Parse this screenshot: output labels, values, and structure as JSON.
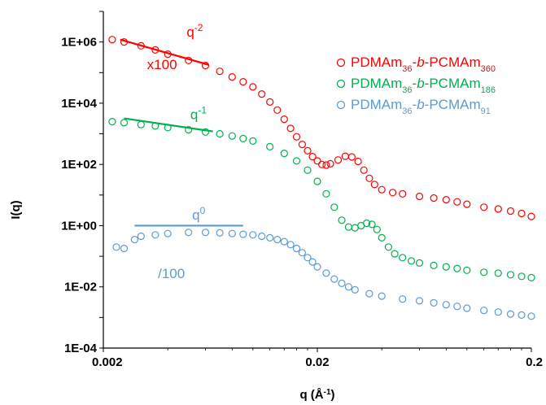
{
  "chart_data": {
    "type": "scatter",
    "title": "",
    "xlabel": "q (Å⁻¹)",
    "xlabel_base": "q (Å",
    "xlabel_exp": "-1",
    "xlabel_end": ")",
    "ylabel": "I(q)",
    "x_scale": "log",
    "y_scale": "log",
    "xlim": [
      0.002,
      0.2
    ],
    "ylim": [
      0.0001,
      10000000
    ],
    "x_ticks": [
      {
        "value": 0.002,
        "label": "0.002"
      },
      {
        "value": 0.02,
        "label": "0.02"
      },
      {
        "value": 0.2,
        "label": "0.2"
      }
    ],
    "y_ticks": [
      {
        "value": 1000000,
        "label": "1E+06"
      },
      {
        "value": 10000,
        "label": "1E+04"
      },
      {
        "value": 100,
        "label": "1E+02"
      },
      {
        "value": 1,
        "label": "1E+00"
      },
      {
        "value": 0.01,
        "label": "1E-02"
      },
      {
        "value": 0.0001,
        "label": "1E-04"
      }
    ],
    "grid": false,
    "legend_position": "right",
    "series": [
      {
        "name": "PDMAm36-b-PCMAm360",
        "name_parts": {
          "a": "PDMAm",
          "a_sub": "36",
          "sep1": "-",
          "b": "b",
          "sep2": "-PCMAm",
          "c_sub": "360"
        },
        "color": "#ff0000",
        "marker": "open-circle",
        "points": [
          [
            0.0022,
            1200000
          ],
          [
            0.0025,
            1000000
          ],
          [
            0.003,
            750000
          ],
          [
            0.0035,
            550000
          ],
          [
            0.004,
            400000
          ],
          [
            0.005,
            250000
          ],
          [
            0.006,
            170000
          ],
          [
            0.007,
            110000
          ],
          [
            0.008,
            72000
          ],
          [
            0.009,
            50000
          ],
          [
            0.01,
            34000
          ],
          [
            0.011,
            20000
          ],
          [
            0.012,
            11000
          ],
          [
            0.013,
            6000
          ],
          [
            0.014,
            3000
          ],
          [
            0.015,
            1500
          ],
          [
            0.016,
            800
          ],
          [
            0.017,
            450
          ],
          [
            0.018,
            280
          ],
          [
            0.019,
            180
          ],
          [
            0.02,
            130
          ],
          [
            0.021,
            100
          ],
          [
            0.022,
            95
          ],
          [
            0.023,
            105
          ],
          [
            0.025,
            140
          ],
          [
            0.027,
            185
          ],
          [
            0.029,
            175
          ],
          [
            0.031,
            125
          ],
          [
            0.033,
            65
          ],
          [
            0.035,
            35
          ],
          [
            0.037,
            22
          ],
          [
            0.04,
            15
          ],
          [
            0.045,
            12
          ],
          [
            0.05,
            11
          ],
          [
            0.06,
            9
          ],
          [
            0.07,
            8
          ],
          [
            0.08,
            7
          ],
          [
            0.09,
            6
          ],
          [
            0.1,
            5
          ],
          [
            0.12,
            4
          ],
          [
            0.14,
            3.5
          ],
          [
            0.16,
            3
          ],
          [
            0.18,
            2.5
          ],
          [
            0.2,
            2
          ]
        ]
      },
      {
        "name": "PDMAm36-b-PCMAm186",
        "name_parts": {
          "a": "PDMAm",
          "a_sub": "36",
          "sep1": "-",
          "b": "b",
          "sep2": "-PCMAm",
          "c_sub": "186"
        },
        "color": "#00b050",
        "marker": "open-circle",
        "points": [
          [
            0.0022,
            2500
          ],
          [
            0.0025,
            2300
          ],
          [
            0.003,
            2000
          ],
          [
            0.0035,
            1800
          ],
          [
            0.004,
            1600
          ],
          [
            0.005,
            1350
          ],
          [
            0.006,
            1150
          ],
          [
            0.007,
            1000
          ],
          [
            0.008,
            850
          ],
          [
            0.009,
            700
          ],
          [
            0.01,
            580
          ],
          [
            0.012,
            380
          ],
          [
            0.014,
            230
          ],
          [
            0.016,
            130
          ],
          [
            0.018,
            65
          ],
          [
            0.02,
            28
          ],
          [
            0.022,
            11
          ],
          [
            0.024,
            4
          ],
          [
            0.026,
            1.5
          ],
          [
            0.028,
            0.9
          ],
          [
            0.03,
            0.85
          ],
          [
            0.032,
            1.0
          ],
          [
            0.034,
            1.2
          ],
          [
            0.036,
            1.1
          ],
          [
            0.038,
            0.75
          ],
          [
            0.04,
            0.4
          ],
          [
            0.043,
            0.2
          ],
          [
            0.046,
            0.12
          ],
          [
            0.05,
            0.09
          ],
          [
            0.055,
            0.07
          ],
          [
            0.06,
            0.06
          ],
          [
            0.07,
            0.05
          ],
          [
            0.08,
            0.045
          ],
          [
            0.09,
            0.04
          ],
          [
            0.1,
            0.035
          ],
          [
            0.12,
            0.03
          ],
          [
            0.14,
            0.028
          ],
          [
            0.16,
            0.025
          ],
          [
            0.18,
            0.022
          ],
          [
            0.2,
            0.02
          ]
        ]
      },
      {
        "name": "PDMAm36-b-PCMAm91",
        "name_parts": {
          "a": "PDMAm",
          "a_sub": "36",
          "sep1": "-",
          "b": "b",
          "sep2": "-PCMAm",
          "c_sub": "91"
        },
        "color": "#5b9bd5",
        "marker": "open-circle",
        "points": [
          [
            0.0023,
            0.2
          ],
          [
            0.0025,
            0.18
          ],
          [
            0.0028,
            0.35
          ],
          [
            0.003,
            0.45
          ],
          [
            0.0035,
            0.5
          ],
          [
            0.004,
            0.55
          ],
          [
            0.005,
            0.6
          ],
          [
            0.006,
            0.6
          ],
          [
            0.007,
            0.58
          ],
          [
            0.008,
            0.55
          ],
          [
            0.009,
            0.52
          ],
          [
            0.01,
            0.5
          ],
          [
            0.011,
            0.45
          ],
          [
            0.012,
            0.4
          ],
          [
            0.013,
            0.35
          ],
          [
            0.014,
            0.3
          ],
          [
            0.015,
            0.24
          ],
          [
            0.016,
            0.18
          ],
          [
            0.017,
            0.13
          ],
          [
            0.018,
            0.09
          ],
          [
            0.019,
            0.065
          ],
          [
            0.02,
            0.045
          ],
          [
            0.022,
            0.028
          ],
          [
            0.024,
            0.018
          ],
          [
            0.026,
            0.013
          ],
          [
            0.028,
            0.01
          ],
          [
            0.03,
            0.008
          ],
          [
            0.035,
            0.006
          ],
          [
            0.04,
            0.005
          ],
          [
            0.05,
            0.004
          ],
          [
            0.06,
            0.0035
          ],
          [
            0.07,
            0.003
          ],
          [
            0.08,
            0.0026
          ],
          [
            0.09,
            0.0023
          ],
          [
            0.1,
            0.002
          ],
          [
            0.12,
            0.0017
          ],
          [
            0.14,
            0.0015
          ],
          [
            0.16,
            0.0013
          ],
          [
            0.18,
            0.0012
          ],
          [
            0.2,
            0.0011
          ]
        ]
      }
    ],
    "slope_lines": [
      {
        "label_base": "q",
        "label_exp": "-2",
        "color": "#ff0000",
        "x0": 0.0024,
        "y0": 1200000,
        "x1": 0.0062,
        "y1": 180000,
        "label_x": 0.0049,
        "label_y": 1500000
      },
      {
        "label_base": "q",
        "label_exp": "-1",
        "color": "#00b050",
        "x0": 0.0025,
        "y0": 3200,
        "x1": 0.0065,
        "y1": 1200,
        "label_x": 0.0051,
        "label_y": 3000
      },
      {
        "label_base": "q",
        "label_exp": "0",
        "color": "#5b9bd5",
        "x0": 0.0028,
        "y0": 1.0,
        "x1": 0.009,
        "y1": 1.0,
        "label_x": 0.0052,
        "label_y": 1.6
      }
    ],
    "annotations": [
      {
        "text": "x100",
        "color": "#ff0000",
        "x": 0.0032,
        "y": 130000
      },
      {
        "text": "/100",
        "color": "#5b9bd5",
        "x": 0.0036,
        "y": 0.019
      }
    ]
  }
}
